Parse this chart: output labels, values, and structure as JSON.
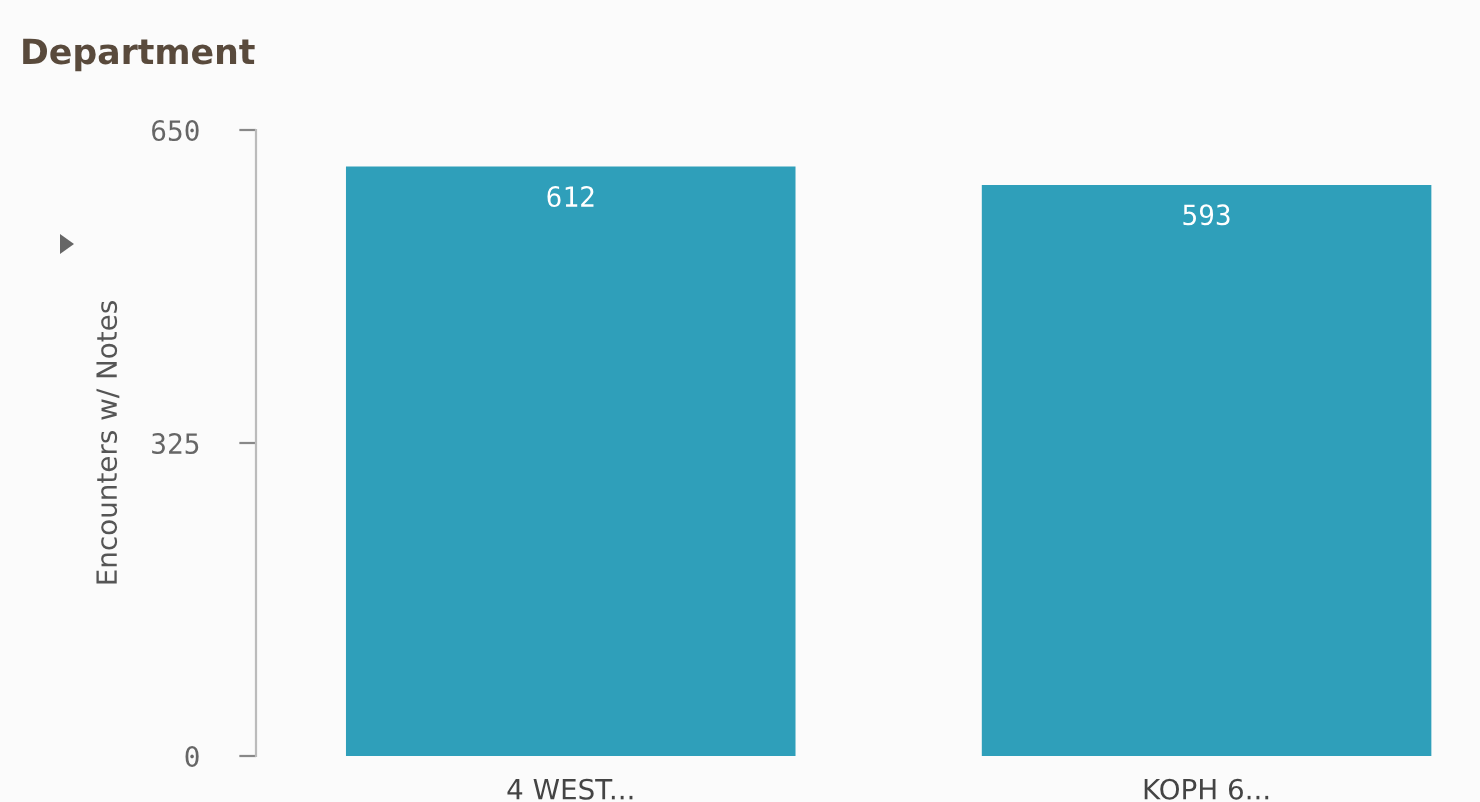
{
  "chart_data": {
    "type": "bar",
    "title": "Department",
    "ylabel": "Encounters w/ Notes",
    "categories": [
      "4 WEST...",
      "KOPH 6..."
    ],
    "values": [
      612,
      593
    ],
    "color": "#2f9fba",
    "ylim": [
      0,
      650
    ],
    "yticks": [
      0,
      325,
      650
    ],
    "grid": false,
    "data_labels": true
  }
}
